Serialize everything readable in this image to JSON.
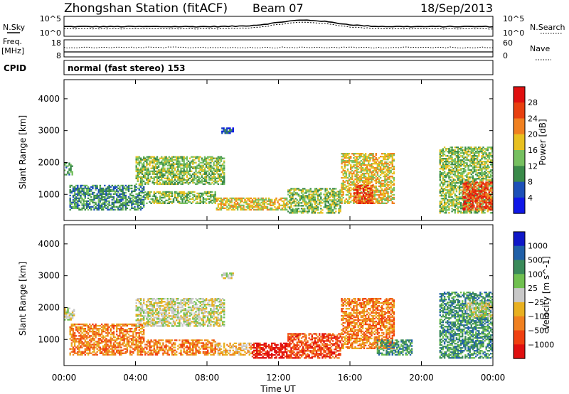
{
  "header": {
    "title": "Zhongshan Station (fitACF)",
    "beam": "Beam 07",
    "date": "18/Sep/2013"
  },
  "colors": {
    "power_scale": [
      "#1018e8",
      "#1d50b8",
      "#3a8a4a",
      "#76c060",
      "#e8c020",
      "#f08020",
      "#e84010",
      "#e01010"
    ],
    "velocity_scale": [
      "#e01010",
      "#f04010",
      "#f08020",
      "#e8b020",
      "#c8c8c8",
      "#70c050",
      "#3a8a5a",
      "#2060a8",
      "#1018c8"
    ]
  },
  "top_panel": {
    "nsky_label": "N.Sky",
    "nsky_ticks": [
      "10^5",
      "10^0"
    ],
    "nsearch_label": "N.Search",
    "nsearch_ticks": [
      "10^5",
      "10^0"
    ],
    "freq_label": "Freq.",
    "freq_unit": "[MHz]",
    "freq_ticks": [
      "18",
      "8"
    ],
    "nave_label": "Nave",
    "nave_ticks": [
      "60",
      "0"
    ],
    "cpid_label": "CPID",
    "cpid_text": "normal (fast stereo) 153"
  },
  "chart_data": [
    {
      "type": "heatmap",
      "name": "Power",
      "ylabel": "Slant Range [km]",
      "xlabel": "Time UT",
      "ylim": [
        180,
        4600
      ],
      "yticks": [
        1000,
        2000,
        3000,
        4000
      ],
      "xticks": [
        "00:00",
        "04:00",
        "08:00",
        "12:00",
        "16:00",
        "20:00",
        "00:00"
      ],
      "colorbar": {
        "label": "Power [dB]",
        "ticks": [
          "4",
          "8",
          "12",
          "16",
          "20",
          "24",
          "28"
        ],
        "range": [
          0,
          32
        ]
      },
      "echo_regions": [
        {
          "t0": 0.0,
          "t1": 0.5,
          "r0": 1600,
          "r1": 2000,
          "level": 2
        },
        {
          "t0": 0.3,
          "t1": 4.5,
          "r0": 500,
          "r1": 1300,
          "level": 2
        },
        {
          "t0": 4.0,
          "t1": 9.0,
          "r0": 1300,
          "r1": 2200,
          "level": 3
        },
        {
          "t0": 4.5,
          "t1": 8.5,
          "r0": 700,
          "r1": 1100,
          "level": 3
        },
        {
          "t0": 8.5,
          "t1": 12.5,
          "r0": 500,
          "r1": 900,
          "level": 4
        },
        {
          "t0": 8.8,
          "t1": 9.5,
          "r0": 2900,
          "r1": 3100,
          "level": 1
        },
        {
          "t0": 12.5,
          "t1": 15.5,
          "r0": 400,
          "r1": 1200,
          "level": 3
        },
        {
          "t0": 15.5,
          "t1": 18.5,
          "r0": 700,
          "r1": 2300,
          "level": 4
        },
        {
          "t0": 16.2,
          "t1": 17.3,
          "r0": 700,
          "r1": 1300,
          "level": 6
        },
        {
          "t0": 21.0,
          "t1": 24.0,
          "r0": 400,
          "r1": 2500,
          "level": 3
        },
        {
          "t0": 22.3,
          "t1": 24.0,
          "r0": 500,
          "r1": 1400,
          "level": 6
        }
      ]
    },
    {
      "type": "heatmap",
      "name": "Velocity",
      "ylabel": "Slant Range [km]",
      "xlabel": "Time UT",
      "ylim": [
        180,
        4600
      ],
      "yticks": [
        1000,
        2000,
        3000,
        4000
      ],
      "xticks": [
        "00:00",
        "04:00",
        "08:00",
        "12:00",
        "16:00",
        "20:00",
        "00:00"
      ],
      "colorbar": {
        "label": "Velocity [m s^-1]",
        "ticks": [
          "1000",
          "500",
          "100",
          "25",
          "−25",
          "−100",
          "−500",
          "−1000"
        ]
      },
      "echo_regions": [
        {
          "t0": 0.0,
          "t1": 0.6,
          "r0": 1600,
          "r1": 2000,
          "level": 4
        },
        {
          "t0": 0.3,
          "t1": 4.5,
          "r0": 500,
          "r1": 1500,
          "level": 2
        },
        {
          "t0": 4.0,
          "t1": 9.0,
          "r0": 1400,
          "r1": 2300,
          "level": 4
        },
        {
          "t0": 4.5,
          "t1": 8.5,
          "r0": 500,
          "r1": 1000,
          "level": 2
        },
        {
          "t0": 8.5,
          "t1": 11.0,
          "r0": 500,
          "r1": 900,
          "level": 3
        },
        {
          "t0": 10.5,
          "t1": 12.5,
          "r0": 400,
          "r1": 900,
          "level": 0
        },
        {
          "t0": 8.8,
          "t1": 9.5,
          "r0": 2900,
          "r1": 3100,
          "level": 4
        },
        {
          "t0": 12.5,
          "t1": 15.5,
          "r0": 400,
          "r1": 1200,
          "level": 1
        },
        {
          "t0": 15.5,
          "t1": 18.5,
          "r0": 700,
          "r1": 2300,
          "level": 2
        },
        {
          "t0": 17.5,
          "t1": 19.5,
          "r0": 500,
          "r1": 1000,
          "level": 6
        },
        {
          "t0": 21.0,
          "t1": 24.0,
          "r0": 400,
          "r1": 2500,
          "level": 6
        },
        {
          "t0": 22.5,
          "t1": 24.0,
          "r0": 1700,
          "r1": 2200,
          "level": 4
        }
      ]
    }
  ]
}
